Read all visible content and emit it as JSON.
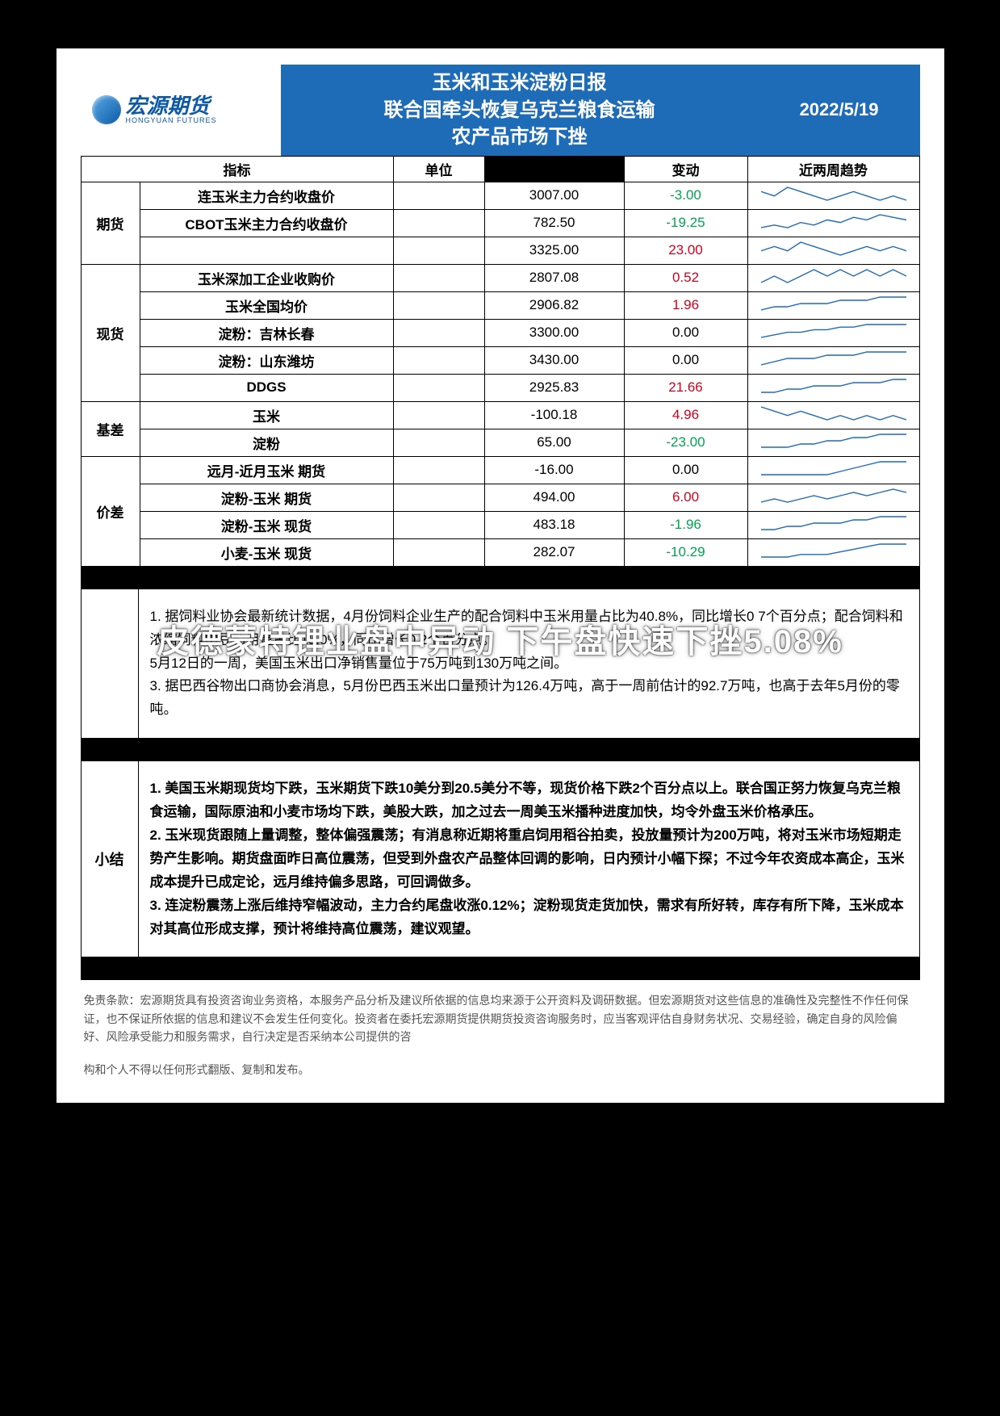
{
  "logo": {
    "name": "宏源期货",
    "sub": "HONGYUAN FUTURES"
  },
  "header": {
    "title_line1": "玉米和玉米淀粉日报",
    "title_line2": "联合国牵头恢复乌克兰粮食运输",
    "title_line3": "农产品市场下挫",
    "date": "2022/5/19"
  },
  "columns": {
    "indicator": "指标",
    "unit": "单位",
    "value": "",
    "change": "变动",
    "trend": "近两周趋势"
  },
  "colors": {
    "pos": "#d6001c",
    "neg": "#00a651",
    "header_bg": "#1e6bb8"
  },
  "groups": [
    {
      "name": "期货",
      "rows": [
        {
          "indicator": "连玉米主力合约收盘价",
          "value": "3007.00",
          "change": "-3.00",
          "dir": "neg",
          "spark": [
            5,
            4,
            6,
            5,
            4,
            3,
            4,
            5,
            4,
            3,
            4,
            3
          ]
        },
        {
          "indicator": "CBOT玉米主力合约收盘价",
          "value": "782.50",
          "change": "-19.25",
          "dir": "neg",
          "spark": [
            3,
            4,
            3,
            5,
            4,
            6,
            5,
            7,
            6,
            8,
            7,
            6
          ]
        },
        {
          "indicator": "",
          "value": "3325.00",
          "change": "23.00",
          "dir": "pos",
          "spark": [
            4,
            5,
            4,
            6,
            5,
            4,
            3,
            4,
            5,
            4,
            5,
            4
          ]
        }
      ]
    },
    {
      "name": "现货",
      "rows": [
        {
          "indicator": "玉米深加工企业收购价",
          "value": "2807.08",
          "change": "0.52",
          "dir": "pos",
          "spark": [
            4,
            5,
            4,
            5,
            6,
            5,
            6,
            5,
            6,
            5,
            6,
            5
          ]
        },
        {
          "indicator": "玉米全国均价",
          "value": "2906.82",
          "change": "1.96",
          "dir": "pos",
          "spark": [
            3,
            4,
            4,
            5,
            5,
            5,
            6,
            6,
            6,
            7,
            7,
            7
          ]
        },
        {
          "indicator": "淀粉：吉林长春",
          "value": "3300.00",
          "change": "0.00",
          "dir": "zero",
          "spark": [
            2,
            3,
            4,
            4,
            5,
            5,
            6,
            6,
            7,
            7,
            7,
            7
          ]
        },
        {
          "indicator": "淀粉：山东潍坊",
          "value": "3430.00",
          "change": "0.00",
          "dir": "zero",
          "spark": [
            3,
            4,
            5,
            5,
            5,
            6,
            6,
            6,
            7,
            7,
            7,
            7
          ]
        },
        {
          "indicator": "DDGS",
          "value": "2925.83",
          "change": "21.66",
          "dir": "pos",
          "spark": [
            3,
            3,
            4,
            4,
            5,
            5,
            5,
            6,
            6,
            6,
            7,
            7
          ]
        }
      ]
    },
    {
      "name": "基差",
      "rows": [
        {
          "indicator": "玉米",
          "value": "-100.18",
          "change": "4.96",
          "dir": "pos",
          "spark": [
            6,
            5,
            4,
            5,
            4,
            3,
            4,
            3,
            4,
            3,
            4,
            3
          ]
        },
        {
          "indicator": "淀粉",
          "value": "65.00",
          "change": "-23.00",
          "dir": "neg",
          "spark": [
            3,
            3,
            3,
            4,
            4,
            5,
            5,
            6,
            6,
            7,
            7,
            7
          ]
        }
      ]
    },
    {
      "name": "价差",
      "rows": [
        {
          "indicator": "远月-近月玉米 期货",
          "value": "-16.00",
          "change": "0.00",
          "dir": "zero",
          "spark": [
            3,
            3,
            3,
            3,
            3,
            3,
            4,
            5,
            6,
            7,
            7,
            7
          ]
        },
        {
          "indicator": "淀粉-玉米 期货",
          "value": "494.00",
          "change": "6.00",
          "dir": "pos",
          "spark": [
            3,
            4,
            3,
            4,
            5,
            4,
            5,
            6,
            5,
            6,
            7,
            6
          ]
        },
        {
          "indicator": "淀粉-玉米 现货",
          "value": "483.18",
          "change": "-1.96",
          "dir": "neg",
          "spark": [
            3,
            3,
            4,
            4,
            5,
            5,
            5,
            6,
            6,
            7,
            7,
            7
          ]
        },
        {
          "indicator": "小麦-玉米 现货",
          "value": "282.07",
          "change": "-10.29",
          "dir": "neg",
          "spark": [
            3,
            3,
            3,
            4,
            4,
            4,
            5,
            6,
            7,
            8,
            8,
            8
          ]
        }
      ]
    }
  ],
  "overlay_text": "皮德蒙特锂业盘中异动 下午盘快速下挫5.08%",
  "news": {
    "label": "",
    "items": [
      "1. 据饲料业协会最新统计数据，4月份饲料企业生产的配合饲料中玉米用量占比为40.8%，同比增长0 7个百分点；配合饲料和浓缩饲料中豆粕用量占比15.0%，同比增长0.2个百分点。",
      "5月12日的一周，美国玉米出口净销售量位于75万吨到130万吨之间。",
      "3. 据巴西谷物出口商协会消息，5月份巴西玉米出口量预计为126.4万吨，高于一周前估计的92.7万吨，也高于去年5月份的零吨。"
    ]
  },
  "summary": {
    "label": "小结",
    "items": [
      "1. 美国玉米期现货均下跌，玉米期货下跌10美分到20.5美分不等，现货价格下跌2个百分点以上。联合国正努力恢复乌克兰粮食运输，国际原油和小麦市场均下跌，美股大跌，加之过去一周美玉米播种进度加快，均令外盘玉米价格承压。",
      "2. 玉米现货跟随上量调整，整体偏强震荡；有消息称近期将重启饲用稻谷拍卖，投放量预计为200万吨，将对玉米市场短期走势产生影响。期货盘面昨日高位震荡，但受到外盘农产品整体回调的影响，日内预计小幅下探；不过今年农资成本高企，玉米成本提升已成定论，远月维持偏多思路，可回调做多。",
      "3. 连淀粉震荡上涨后维持窄幅波动，主力合约尾盘收涨0.12%；淀粉现货走货加快，需求有所好转，库存有所下降，玉米成本对其高位形成支撑，预计将维持高位震荡，建议观望。"
    ]
  },
  "disclaimer": {
    "para1": "免责条款：宏源期货具有投资咨询业务资格，本服务产品分析及建议所依据的信息均来源于公开资料及调研数据。但宏源期货对这些信息的准确性及完整性不作任何保证，也不保证所依据的信息和建议不会发生任何变化。投资者在委托宏源期货提供期货投资咨询服务时，应当客观评估自身财务状况、交易经验，确定自身的风险偏好、风险承受能力和服务需求，自行决定是否采纳本公司提供的咨",
    "para2": "构和个人不得以任何形式翻版、复制和发布。"
  }
}
